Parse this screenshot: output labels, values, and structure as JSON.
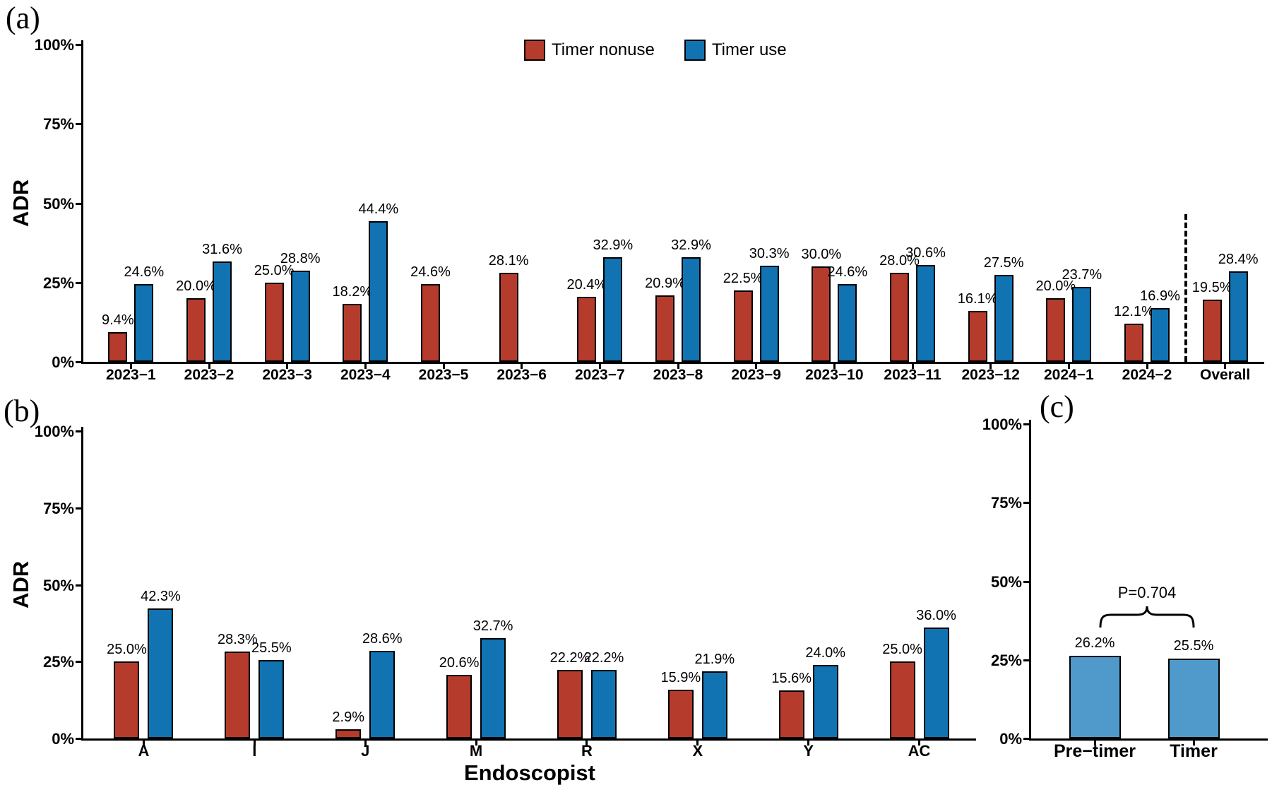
{
  "panels": {
    "a": {
      "letter": "(a)",
      "ylabel": "ADR"
    },
    "b": {
      "letter": "(b)",
      "ylabel": "ADR",
      "xlabel": "Endoscopist"
    },
    "c": {
      "letter": "(c)"
    }
  },
  "legend": {
    "items": [
      {
        "label": "Timer nonuse",
        "color": "#b53b2c"
      },
      {
        "label": "Timer use",
        "color": "#1173b2"
      }
    ]
  },
  "colors": {
    "timer_nonuse": "#b53b2c",
    "timer_use": "#1173b2",
    "summary_bar": "#4f9acb",
    "axis": "#000000"
  },
  "chart_data": [
    {
      "id": "monthly",
      "type": "bar",
      "title": "",
      "xlabel": "",
      "ylabel": "ADR",
      "ylim": [
        0,
        100
      ],
      "ytick_values": [
        0,
        25,
        50,
        75,
        100
      ],
      "ytick_labels": [
        "0%",
        "25%",
        "50%",
        "75%",
        "100%"
      ],
      "categories": [
        "2023−1",
        "2023−2",
        "2023−3",
        "2023−4",
        "2023−5",
        "2023−6",
        "2023−7",
        "2023−8",
        "2023−9",
        "2023−10",
        "2023−11",
        "2023−12",
        "2024−1",
        "2024−2",
        "Overall"
      ],
      "series": [
        {
          "name": "Timer nonuse",
          "color": "#b53b2c",
          "values": [
            9.4,
            20.0,
            25.0,
            18.2,
            24.6,
            28.1,
            20.4,
            20.9,
            22.5,
            30.0,
            28.0,
            16.1,
            20.0,
            12.1,
            19.5
          ]
        },
        {
          "name": "Timer use",
          "color": "#1173b2",
          "values": [
            24.6,
            31.6,
            28.8,
            44.4,
            null,
            null,
            32.9,
            32.9,
            30.3,
            24.6,
            30.6,
            27.5,
            23.7,
            16.9,
            28.4
          ]
        }
      ],
      "separator_after_category": "2024−2",
      "legend_position": "top"
    },
    {
      "id": "endoscopist",
      "type": "bar",
      "title": "",
      "xlabel": "Endoscopist",
      "ylabel": "ADR",
      "ylim": [
        0,
        100
      ],
      "ytick_values": [
        0,
        25,
        50,
        75,
        100
      ],
      "ytick_labels": [
        "0%",
        "25%",
        "50%",
        "75%",
        "100%"
      ],
      "categories": [
        "A",
        "I",
        "J",
        "M",
        "R",
        "X",
        "Y",
        "AC"
      ],
      "series": [
        {
          "name": "Timer nonuse",
          "color": "#b53b2c",
          "values": [
            25.0,
            28.3,
            2.9,
            20.6,
            22.2,
            15.9,
            15.6,
            25.0
          ]
        },
        {
          "name": "Timer use",
          "color": "#1173b2",
          "values": [
            42.3,
            25.5,
            28.6,
            32.7,
            22.2,
            21.9,
            24.0,
            36.0
          ]
        }
      ]
    },
    {
      "id": "pre_post",
      "type": "bar",
      "title": "",
      "xlabel": "",
      "ylabel": "",
      "ylim": [
        0,
        100
      ],
      "ytick_values": [
        0,
        25,
        50,
        75,
        100
      ],
      "ytick_labels": [
        "0%",
        "25%",
        "50%",
        "75%",
        "100%"
      ],
      "categories": [
        "Pre−timer",
        "Timer"
      ],
      "values": [
        26.2,
        25.5
      ],
      "bar_color": "#4f9acb",
      "annotation": "P=0.704"
    }
  ]
}
